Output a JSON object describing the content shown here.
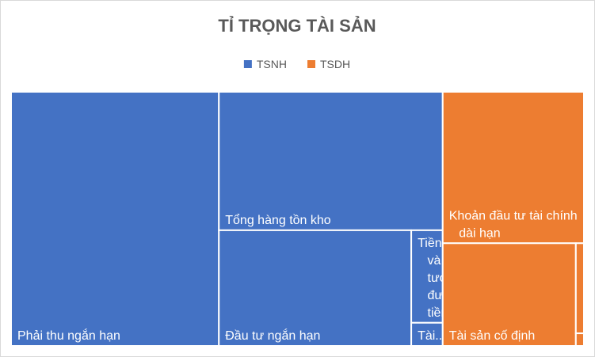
{
  "chart_data": {
    "type": "treemap",
    "title": "TỈ TRỌNG TÀI SẢN",
    "series": [
      {
        "name": "TSNH",
        "color": "#4472c4",
        "labels": [
          "Phải thu ngắn hạn",
          "Tổng hàng tồn kho",
          "Đầu tư ngắn hạn",
          "Tiền và tương đương tiền",
          "Tài..."
        ],
        "values": [
          36.3,
          21.3,
          15.3,
          2.0,
          0.5
        ]
      },
      {
        "name": "TSDH",
        "color": "#ed7d31",
        "labels": [
          "Khoản đầu tư tài chính dài hạn",
          "Tài sản cố định",
          null,
          null
        ],
        "values": [
          14.7,
          9.4,
          0.5,
          0.07
        ]
      }
    ]
  }
}
